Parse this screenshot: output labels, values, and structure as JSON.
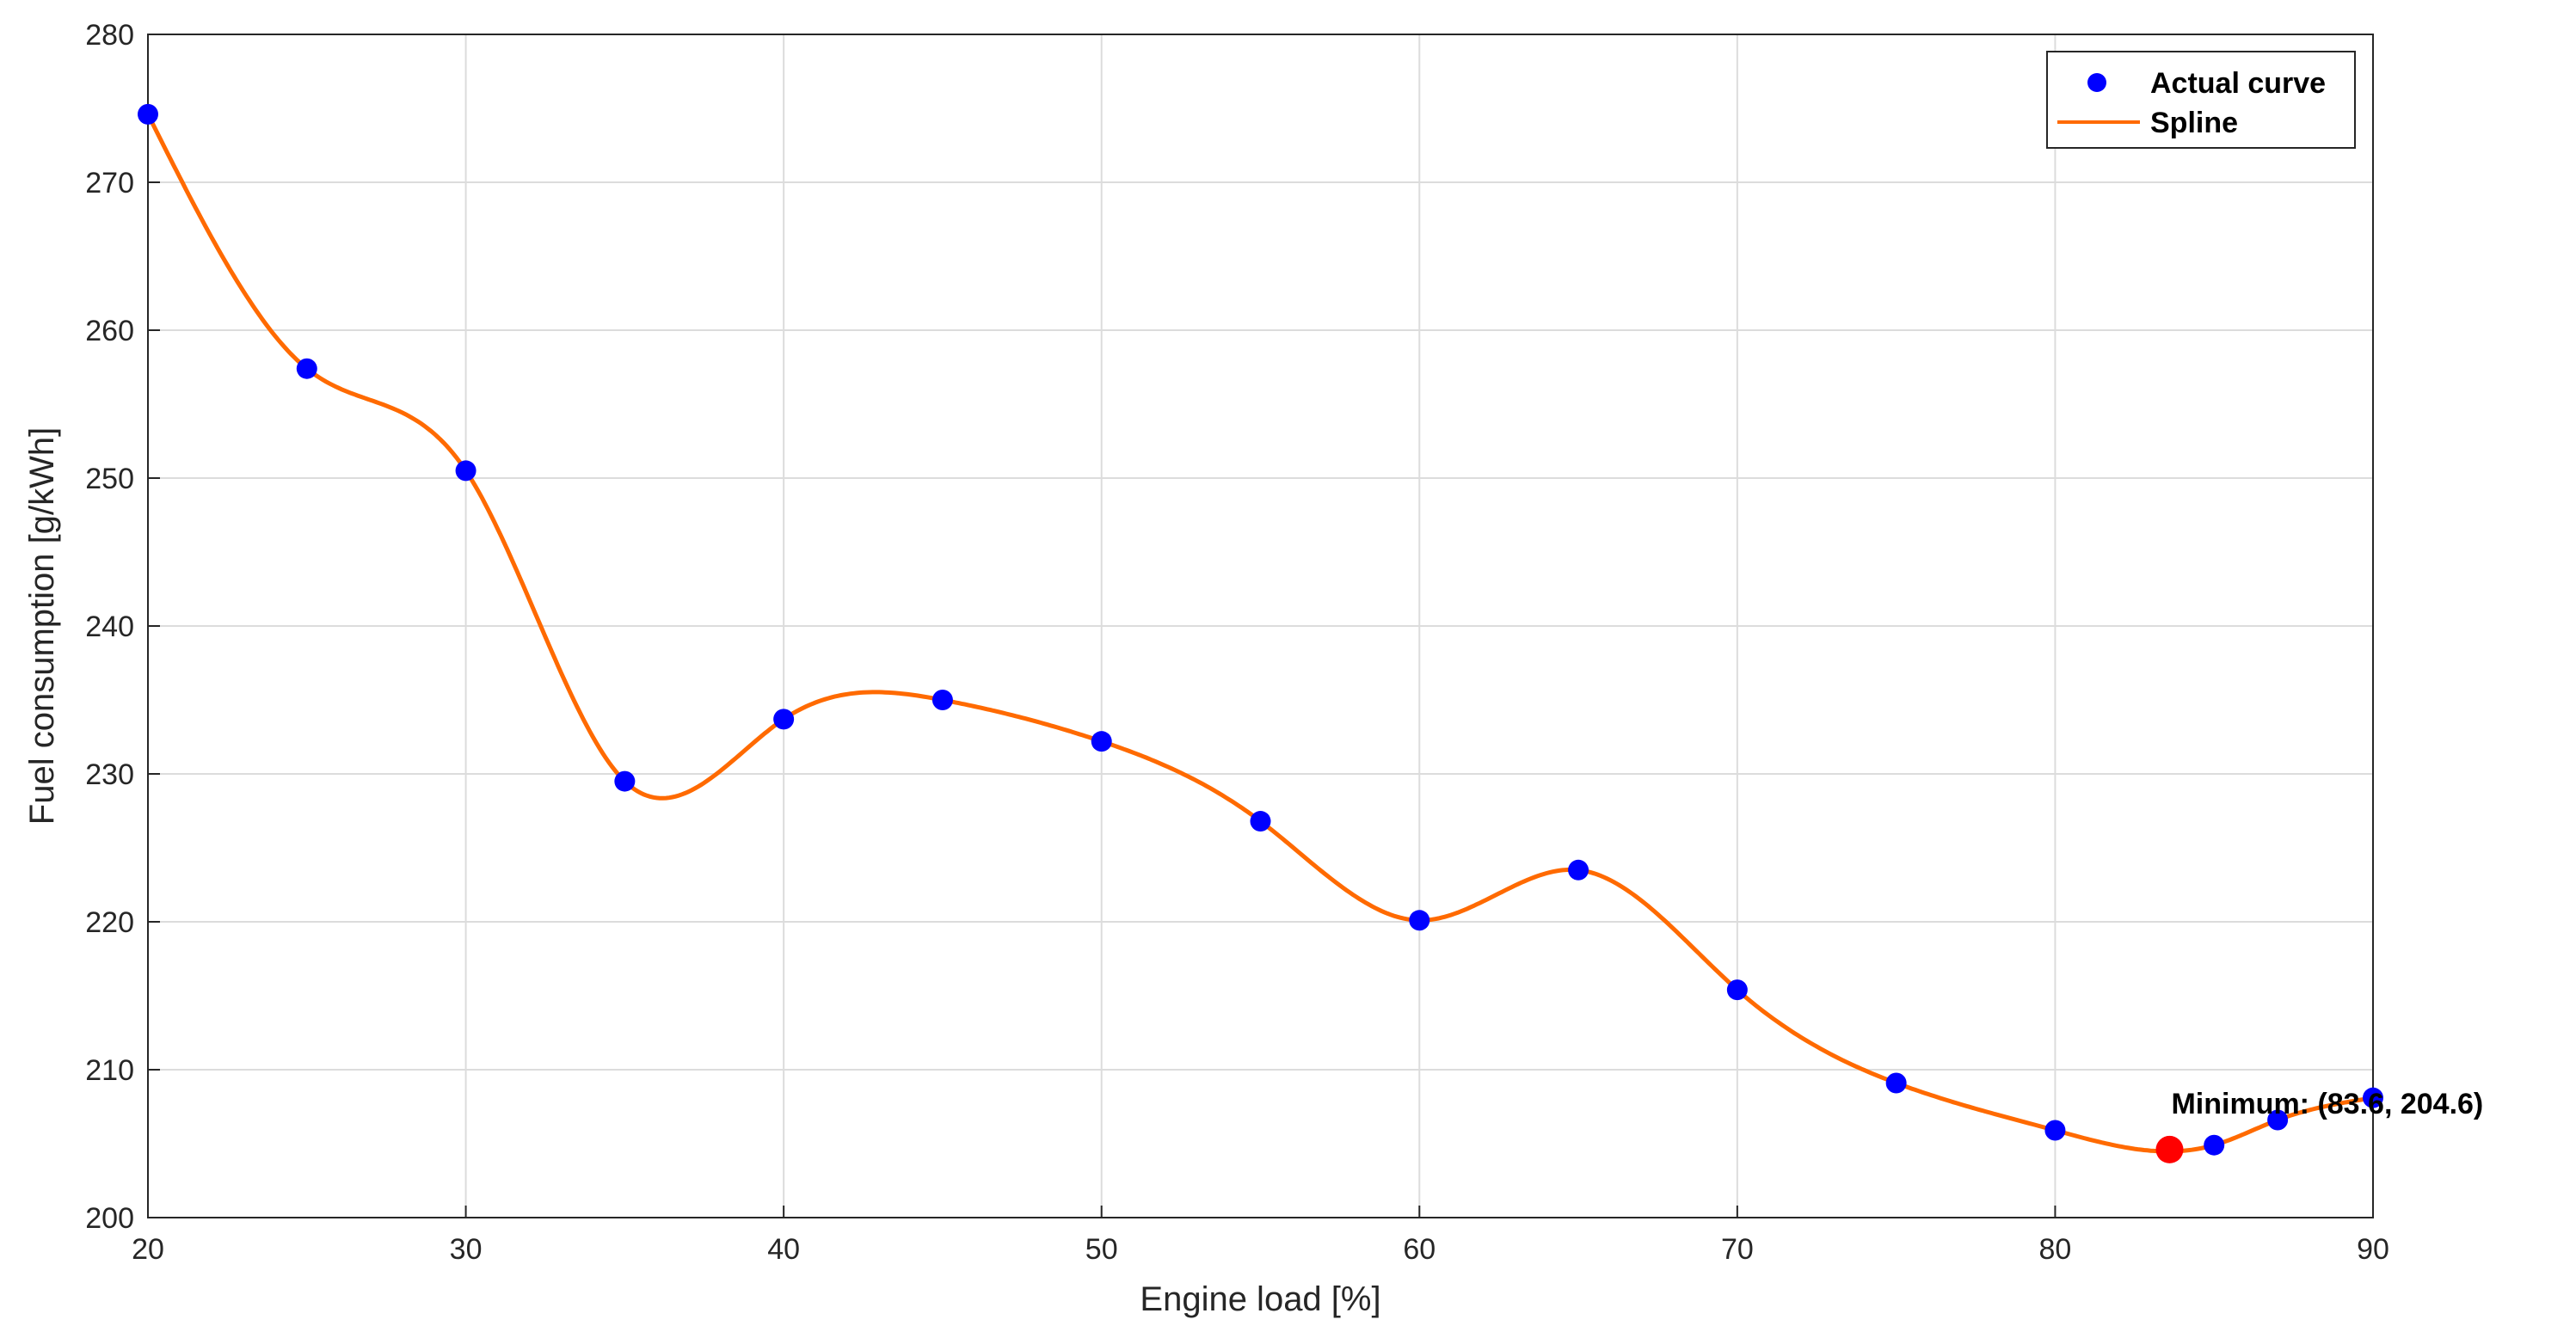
{
  "chart_data": {
    "type": "line",
    "xlabel": "Engine load [%]",
    "ylabel": "Fuel consumption [g/kWh]",
    "xlim": [
      20,
      90
    ],
    "ylim": [
      200,
      280
    ],
    "xticks": [
      20,
      30,
      40,
      50,
      60,
      70,
      80,
      90
    ],
    "yticks": [
      200,
      210,
      220,
      230,
      240,
      250,
      260,
      270,
      280
    ],
    "grid": true,
    "legend_position": "top-right",
    "series": [
      {
        "name": "Actual curve",
        "style": "markers",
        "color": "#0000ff",
        "x": [
          20,
          25,
          30,
          35,
          40,
          45,
          50,
          55,
          60,
          65,
          70,
          75,
          80,
          85,
          87,
          90
        ],
        "y": [
          274.6,
          257.4,
          250.5,
          229.5,
          233.7,
          235.0,
          232.2,
          226.8,
          220.1,
          223.5,
          215.4,
          209.1,
          205.9,
          204.9,
          206.6,
          208.1
        ]
      },
      {
        "name": "Spline",
        "style": "line",
        "color": "#ff6a00"
      }
    ],
    "minimum_point": {
      "x": 83.6,
      "y": 204.6,
      "color": "#ff0000"
    },
    "annotation": "Minimum: (83.6, 204.6)"
  }
}
